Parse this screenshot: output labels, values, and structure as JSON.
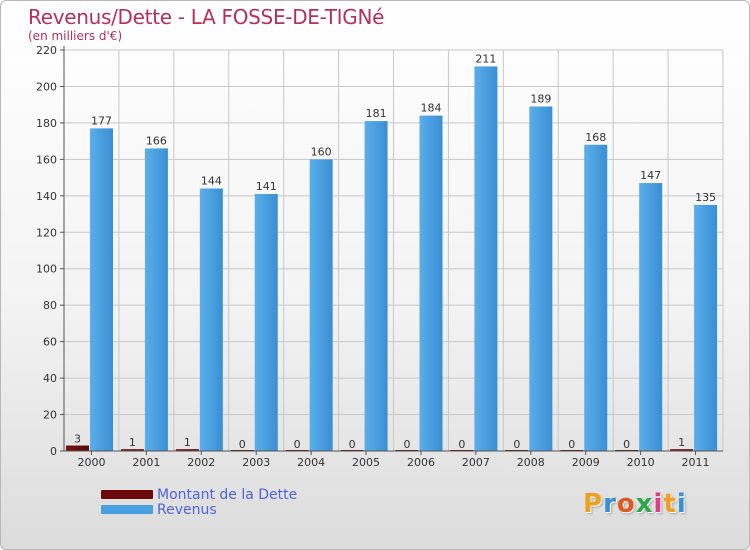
{
  "title": "Revenus/Dette - LA FOSSE-DE-TIGNé",
  "subtitle": "(en milliers d'€)",
  "logo": "Proxiti",
  "colors": {
    "title": "#b4315a",
    "dette": "#6b0a0a",
    "revenus": "#4a9fe0",
    "legend_text": "#4d65d6",
    "grid": "#c8c8c8"
  },
  "chart_data": {
    "type": "bar",
    "title": "Revenus/Dette - LA FOSSE-DE-TIGNé",
    "ylabel": "(en milliers d'€)",
    "xlabel": "",
    "ylim": [
      0,
      220
    ],
    "yticks": [
      0,
      20,
      40,
      60,
      80,
      100,
      120,
      140,
      160,
      180,
      200,
      220
    ],
    "grid": true,
    "legend_position": "bottom-left",
    "categories": [
      "2000",
      "2001",
      "2002",
      "2003",
      "2004",
      "2005",
      "2006",
      "2007",
      "2008",
      "2009",
      "2010",
      "2011"
    ],
    "series": [
      {
        "name": "Montant de la Dette",
        "values": [
          3,
          1,
          1,
          0,
          0,
          0,
          0,
          0,
          0,
          0,
          0,
          1
        ]
      },
      {
        "name": "Revenus",
        "values": [
          177,
          166,
          144,
          141,
          160,
          181,
          184,
          211,
          189,
          168,
          147,
          135
        ]
      }
    ]
  }
}
